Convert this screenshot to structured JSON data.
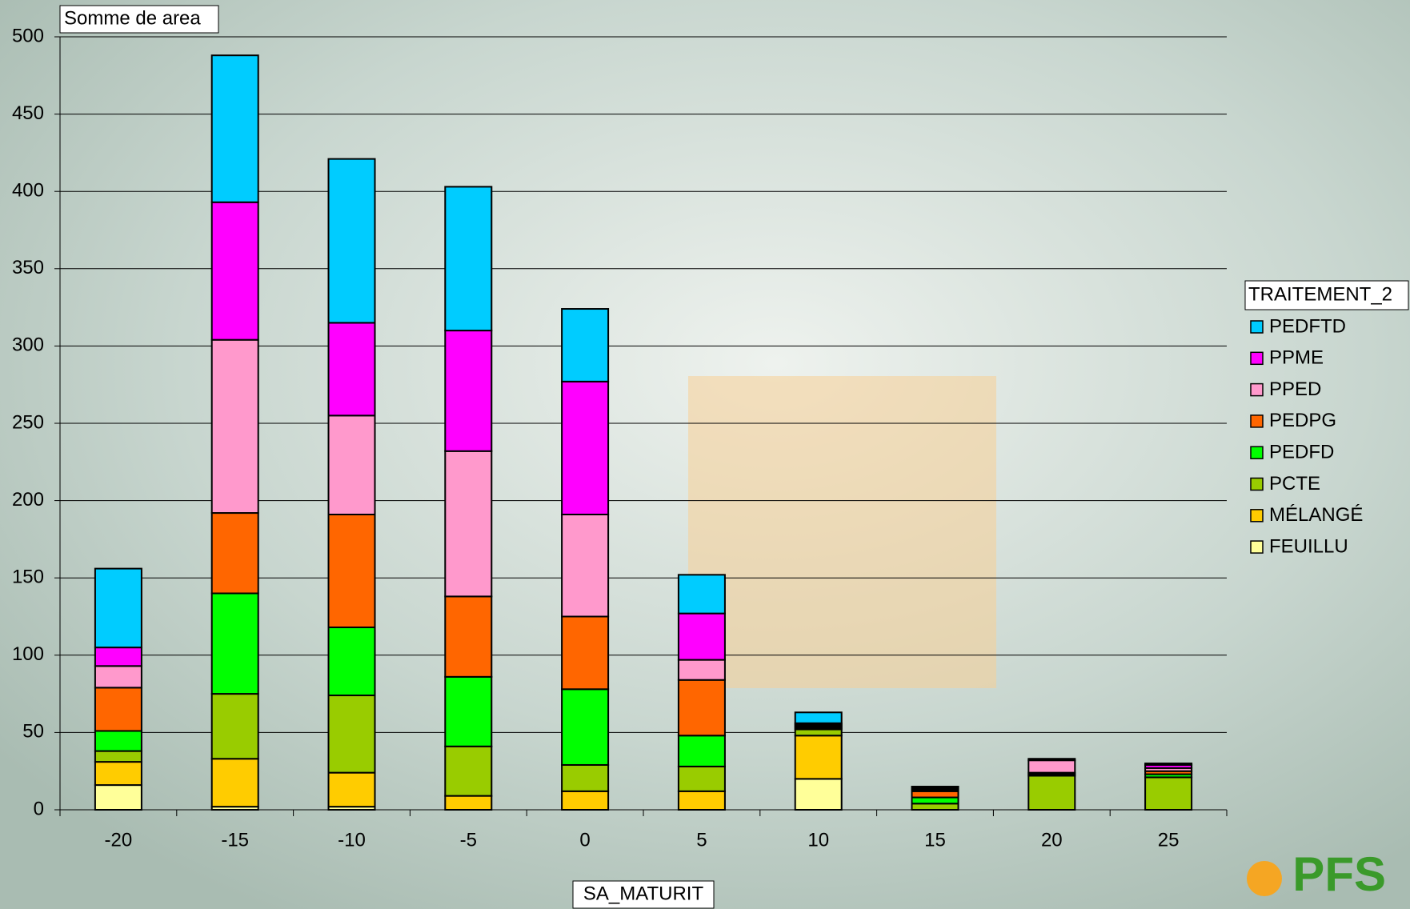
{
  "chart_data": {
    "type": "stacked_bar",
    "title": "Somme de area",
    "x_label": "SA_MATURIT",
    "legend_title": "TRAITEMENT_2",
    "legend": "right",
    "grid": true,
    "categories": [
      "-20",
      "-15",
      "-10",
      "-5",
      "0",
      "5",
      "10",
      "15",
      "20",
      "25"
    ],
    "ylim": [
      0,
      500
    ],
    "yticks": [
      0,
      50,
      100,
      150,
      200,
      250,
      300,
      350,
      400,
      450,
      500
    ],
    "series": [
      {
        "name": "FEUILLU",
        "color": "#ffff99",
        "values": [
          16,
          2,
          2,
          0,
          0,
          0,
          20,
          0,
          0,
          0
        ]
      },
      {
        "name": "MÉLANGÉ",
        "color": "#ffcc00",
        "values": [
          15,
          31,
          22,
          9,
          12,
          12,
          28,
          0,
          0,
          0
        ]
      },
      {
        "name": "PCTE",
        "color": "#99cc00",
        "values": [
          7,
          42,
          50,
          32,
          17,
          16,
          4,
          4,
          22,
          21
        ]
      },
      {
        "name": "PEDFD",
        "color": "#00ff00",
        "values": [
          13,
          65,
          44,
          45,
          49,
          20,
          1,
          4,
          1,
          2
        ]
      },
      {
        "name": "PEDPG",
        "color": "#ff6600",
        "values": [
          28,
          52,
          73,
          52,
          47,
          36,
          1,
          4,
          1,
          2
        ]
      },
      {
        "name": "PPED",
        "color": "#ff99cc",
        "values": [
          14,
          112,
          64,
          94,
          66,
          13,
          1,
          1,
          8,
          2
        ]
      },
      {
        "name": "PPME",
        "color": "#ff00ff",
        "values": [
          12,
          89,
          60,
          78,
          86,
          30,
          1,
          1,
          1,
          2
        ]
      },
      {
        "name": "PEDFTD",
        "color": "#00ccff",
        "values": [
          51,
          95,
          106,
          93,
          47,
          25,
          7,
          1,
          0,
          1
        ]
      }
    ]
  },
  "logo": "PFS"
}
